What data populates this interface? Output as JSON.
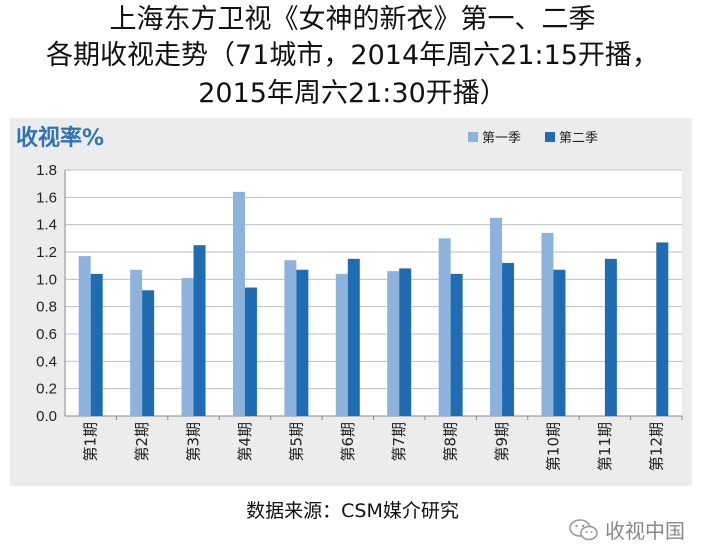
{
  "title_lines": [
    "上海东方卫视《女神的新衣》第一、二季",
    "各期收视走势（71城市，2014年周六21:15开播，",
    "2015年周六21:30开播）"
  ],
  "source": "数据来源：CSM媒介研究",
  "watermark": "收视中国",
  "watermark_icon": "wechat-icon",
  "colors": {
    "season1": "#8db3dc",
    "season2": "#1f6cb3",
    "plot_bg": "#ececec",
    "ylabel": "#2e74b5"
  },
  "chart_data": {
    "type": "bar",
    "ylabel": "收视率%",
    "ylim": [
      0,
      1.8
    ],
    "yticks": [
      "0.0",
      "0.2",
      "0.4",
      "0.6",
      "0.8",
      "1.0",
      "1.2",
      "1.4",
      "1.6",
      "1.8"
    ],
    "grid": true,
    "legend_position": "top-right",
    "categories": [
      "第1期",
      "第2期",
      "第3期",
      "第4期",
      "第5期",
      "第6期",
      "第7期",
      "第8期",
      "第9期",
      "第10期",
      "第11期",
      "第12期"
    ],
    "series": [
      {
        "name": "第一季",
        "values": [
          1.17,
          1.07,
          1.01,
          1.64,
          1.14,
          1.04,
          1.06,
          1.3,
          1.45,
          1.34,
          null,
          null
        ]
      },
      {
        "name": "第二季",
        "values": [
          1.04,
          0.92,
          1.25,
          0.94,
          1.07,
          1.15,
          1.08,
          1.04,
          1.12,
          1.07,
          1.15,
          1.27
        ]
      }
    ]
  }
}
